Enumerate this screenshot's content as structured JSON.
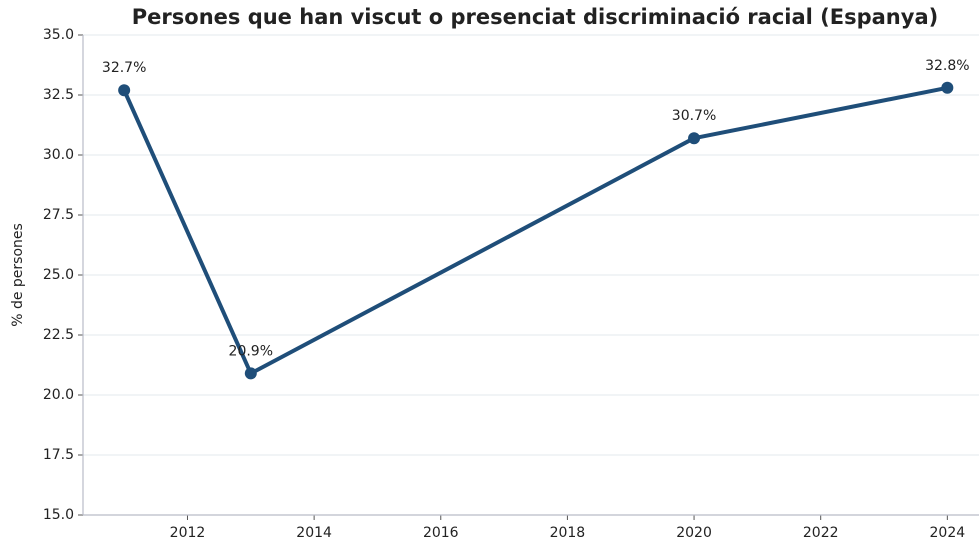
{
  "chart_data": {
    "type": "line",
    "title": "Persones que han viscut o presenciat discriminació racial (Espanya)",
    "ylabel": "% de persones",
    "x": [
      2011,
      2013,
      2020,
      2024
    ],
    "series": [
      {
        "name": "Discriminació racial",
        "color": "#1f4e79",
        "values": [
          32.7,
          20.9,
          30.7,
          32.8
        ],
        "value_labels": [
          "32.7%",
          "20.9%",
          "30.7%",
          "32.8%"
        ]
      }
    ],
    "xlim": [
      2010.35,
      2024.5
    ],
    "xticks": [
      2012,
      2014,
      2016,
      2018,
      2020,
      2022,
      2024
    ],
    "ylim": [
      15,
      35
    ],
    "yticks": [
      {
        "value": 15,
        "label": "15.0"
      },
      17.5,
      {
        "value": 20,
        "label": "20.0"
      },
      22.5,
      {
        "value": 25,
        "label": "25.0"
      },
      27.5,
      {
        "value": 30,
        "label": "30.0"
      },
      32.5,
      {
        "value": 35,
        "label": "35.0"
      }
    ],
    "grid": true
  }
}
